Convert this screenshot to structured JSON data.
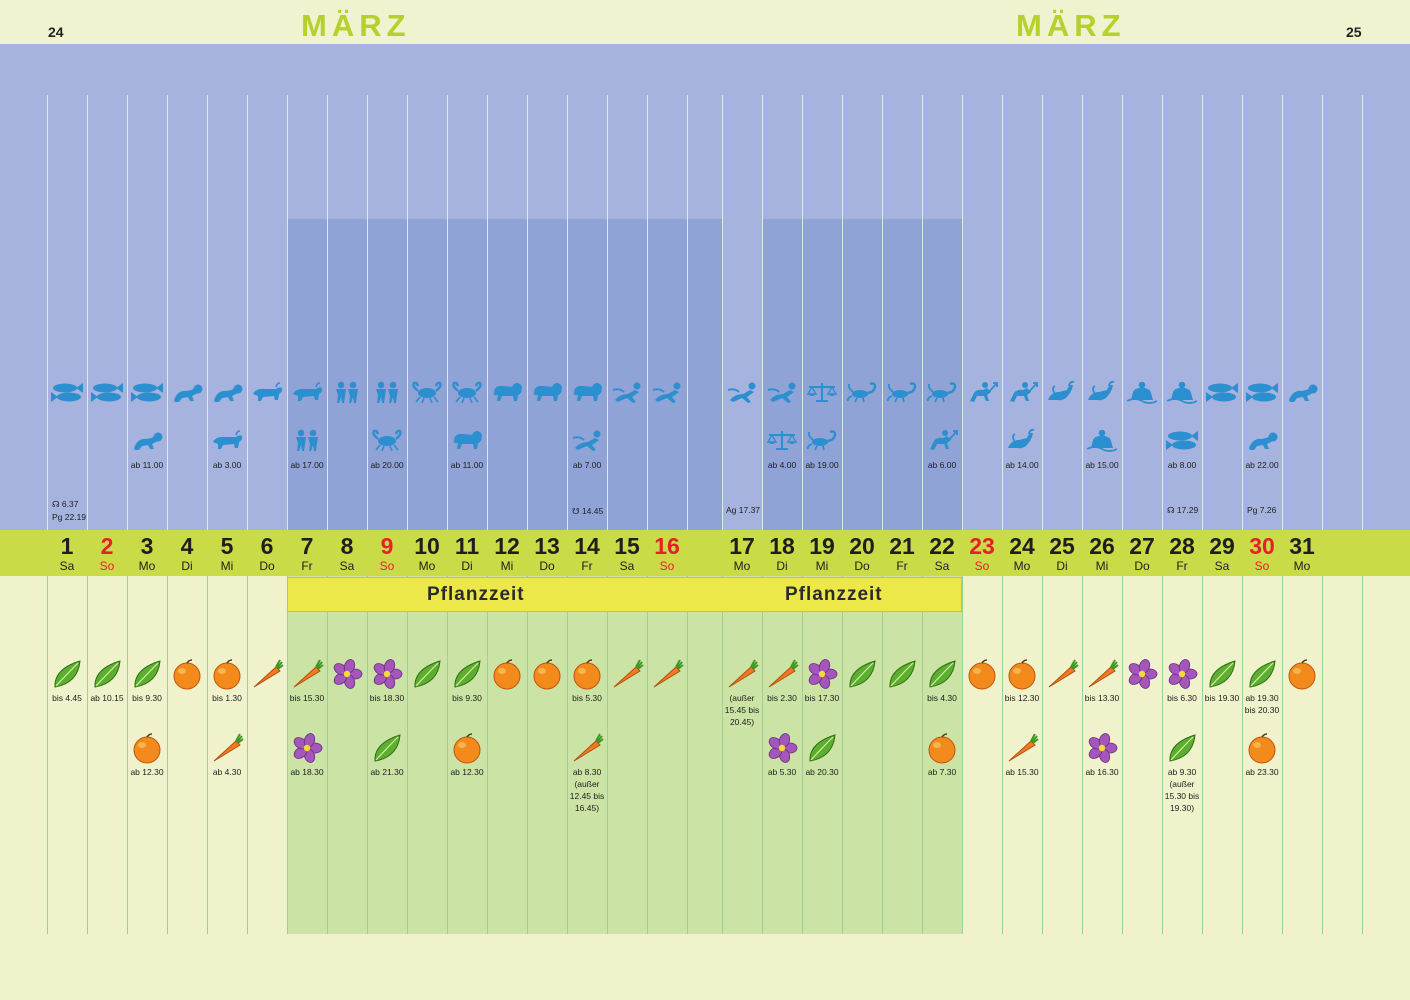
{
  "header": {
    "page_left": "24",
    "page_right": "25",
    "month_left": "MÄRZ",
    "month_right": "MÄRZ"
  },
  "planting": {
    "label_1": "Pflanzzeit",
    "label_2": "Pflanzzeit"
  },
  "days": [
    {
      "num": "1",
      "name": "Sa",
      "red": false
    },
    {
      "num": "2",
      "name": "So",
      "red": true
    },
    {
      "num": "3",
      "name": "Mo",
      "red": false
    },
    {
      "num": "4",
      "name": "Di",
      "red": false
    },
    {
      "num": "5",
      "name": "Mi",
      "red": false
    },
    {
      "num": "6",
      "name": "Do",
      "red": false
    },
    {
      "num": "7",
      "name": "Fr",
      "red": false
    },
    {
      "num": "8",
      "name": "Sa",
      "red": false
    },
    {
      "num": "9",
      "name": "So",
      "red": true
    },
    {
      "num": "10",
      "name": "Mo",
      "red": false
    },
    {
      "num": "11",
      "name": "Di",
      "red": false
    },
    {
      "num": "12",
      "name": "Mi",
      "red": false
    },
    {
      "num": "13",
      "name": "Do",
      "red": false
    },
    {
      "num": "14",
      "name": "Fr",
      "red": false
    },
    {
      "num": "15",
      "name": "Sa",
      "red": false
    },
    {
      "num": "16",
      "name": "So",
      "red": true
    },
    {
      "num": "17",
      "name": "Mo",
      "red": false
    },
    {
      "num": "18",
      "name": "Di",
      "red": false
    },
    {
      "num": "19",
      "name": "Mi",
      "red": false
    },
    {
      "num": "20",
      "name": "Do",
      "red": false
    },
    {
      "num": "21",
      "name": "Fr",
      "red": false
    },
    {
      "num": "22",
      "name": "Sa",
      "red": false
    },
    {
      "num": "23",
      "name": "So",
      "red": true
    },
    {
      "num": "24",
      "name": "Mo",
      "red": false
    },
    {
      "num": "25",
      "name": "Di",
      "red": false
    },
    {
      "num": "26",
      "name": "Mi",
      "red": false
    },
    {
      "num": "27",
      "name": "Do",
      "red": false
    },
    {
      "num": "28",
      "name": "Fr",
      "red": false
    },
    {
      "num": "29",
      "name": "Sa",
      "red": false
    },
    {
      "num": "30",
      "name": "So",
      "red": true
    },
    {
      "num": "31",
      "name": "Mo",
      "red": false
    }
  ],
  "zodiac_row1": [
    "pisces",
    "pisces",
    "pisces",
    "aries",
    "aries",
    "taurus",
    "taurus",
    "gemini",
    "gemini",
    "cancer",
    "cancer",
    "leo",
    "leo",
    "leo",
    "virgo",
    "virgo",
    "virgo",
    "virgo",
    "libra",
    "scorpio",
    "scorpio",
    "scorpio",
    "sagittarius",
    "sagittarius",
    "capricorn",
    "capricorn",
    "aquarius",
    "aquarius",
    "pisces",
    "pisces",
    "aries"
  ],
  "zodiac_row2": [
    {
      "day": 3,
      "sign": "aries",
      "label": "ab 11.00"
    },
    {
      "day": 5,
      "sign": "taurus",
      "label": "ab 3.00"
    },
    {
      "day": 7,
      "sign": "gemini",
      "label": "ab 17.00"
    },
    {
      "day": 9,
      "sign": "cancer",
      "label": "ab 20.00"
    },
    {
      "day": 11,
      "sign": "leo",
      "label": "ab 11.00"
    },
    {
      "day": 14,
      "sign": "virgo",
      "label": "ab 7.00"
    },
    {
      "day": 18,
      "sign": "libra",
      "label": "ab 4.00"
    },
    {
      "day": 19,
      "sign": "scorpio",
      "label": "ab 19.00"
    },
    {
      "day": 22,
      "sign": "sagittarius",
      "label": "ab 6.00"
    },
    {
      "day": 24,
      "sign": "capricorn",
      "label": "ab 14.00"
    },
    {
      "day": 26,
      "sign": "aquarius",
      "label": "ab 15.00"
    },
    {
      "day": 28,
      "sign": "pisces",
      "label": "ab 8.00"
    },
    {
      "day": 30,
      "sign": "aries",
      "label": "ab 22.00"
    }
  ],
  "moon_events": [
    {
      "day": 1,
      "text": "☊ 6.37"
    },
    {
      "day": 1,
      "text": "Pg 22.19"
    },
    {
      "day": 14,
      "text": "☋ 14.45"
    },
    {
      "day": 17,
      "text": "Ag 17.37"
    },
    {
      "day": 28,
      "text": "☊ 17.29"
    },
    {
      "day": 30,
      "text": "Pg 7.26"
    }
  ],
  "plants_row1": [
    {
      "day": 1,
      "type": "leaf",
      "label": "bis 4.45"
    },
    {
      "day": 2,
      "type": "leaf",
      "label": "ab 10.15"
    },
    {
      "day": 3,
      "type": "leaf",
      "label": "bis 9.30"
    },
    {
      "day": 4,
      "type": "fruit",
      "label": ""
    },
    {
      "day": 5,
      "type": "fruit",
      "label": "bis 1.30"
    },
    {
      "day": 6,
      "type": "root",
      "label": ""
    },
    {
      "day": 7,
      "type": "root",
      "label": "bis 15.30"
    },
    {
      "day": 8,
      "type": "flower",
      "label": ""
    },
    {
      "day": 9,
      "type": "flower",
      "label": "bis 18.30"
    },
    {
      "day": 10,
      "type": "leaf",
      "label": ""
    },
    {
      "day": 11,
      "type": "leaf",
      "label": "bis 9.30"
    },
    {
      "day": 12,
      "type": "fruit",
      "label": ""
    },
    {
      "day": 13,
      "type": "fruit",
      "label": ""
    },
    {
      "day": 14,
      "type": "fruit",
      "label": "bis 5.30"
    },
    {
      "day": 15,
      "type": "root",
      "label": ""
    },
    {
      "day": 16,
      "type": "root",
      "label": ""
    },
    {
      "day": 17,
      "type": "root",
      "label": "(außer 15.45 bis 20.45)"
    },
    {
      "day": 18,
      "type": "root",
      "label": "bis 2.30"
    },
    {
      "day": 19,
      "type": "flower",
      "label": "bis 17.30"
    },
    {
      "day": 20,
      "type": "leaf",
      "label": ""
    },
    {
      "day": 21,
      "type": "leaf",
      "label": ""
    },
    {
      "day": 22,
      "type": "leaf",
      "label": "bis 4.30"
    },
    {
      "day": 23,
      "type": "fruit",
      "label": ""
    },
    {
      "day": 24,
      "type": "fruit",
      "label": "bis 12.30"
    },
    {
      "day": 25,
      "type": "root",
      "label": ""
    },
    {
      "day": 26,
      "type": "root",
      "label": "bis 13.30"
    },
    {
      "day": 27,
      "type": "flower",
      "label": ""
    },
    {
      "day": 28,
      "type": "flower",
      "label": "bis 6.30"
    },
    {
      "day": 29,
      "type": "leaf",
      "label": "bis 19.30"
    },
    {
      "day": 30,
      "type": "leaf",
      "label": "ab 19.30 bis 20.30"
    },
    {
      "day": 31,
      "type": "fruit",
      "label": ""
    }
  ],
  "plants_row2": [
    {
      "day": 3,
      "type": "fruit",
      "label": "ab 12.30"
    },
    {
      "day": 5,
      "type": "root",
      "label": "ab 4.30"
    },
    {
      "day": 7,
      "type": "flower",
      "label": "ab 18.30"
    },
    {
      "day": 9,
      "type": "leaf",
      "label": "ab 21.30"
    },
    {
      "day": 11,
      "type": "fruit",
      "label": "ab 12.30"
    },
    {
      "day": 14,
      "type": "root",
      "label": "ab 8.30 (außer 12.45 bis 16.45)"
    },
    {
      "day": 18,
      "type": "flower",
      "label": "ab 5.30"
    },
    {
      "day": 19,
      "type": "leaf",
      "label": "ab 20.30"
    },
    {
      "day": 22,
      "type": "fruit",
      "label": "ab 7.30"
    },
    {
      "day": 24,
      "type": "root",
      "label": "ab 15.30"
    },
    {
      "day": 26,
      "type": "flower",
      "label": "ab 16.30"
    },
    {
      "day": 28,
      "type": "leaf",
      "label": "ab 9.30 (außer 15.30 bis 19.30)"
    },
    {
      "day": 30,
      "type": "fruit",
      "label": "ab 23.30"
    }
  ],
  "celestial": [
    {
      "name": "first-quarter-moon-icon",
      "day": 6
    },
    {
      "name": "full-moon-sun-icon",
      "day": 14
    },
    {
      "name": "last-quarter-moon-icon",
      "day": 22
    },
    {
      "name": "new-moon-icon",
      "day": 29
    }
  ],
  "colors": {
    "sky": "#a6b3de",
    "sky_dark": "#8fa3d6",
    "moon_path": "#a6c5ea",
    "zodiac": "#2b8fd0",
    "day_band": "#c9dc47",
    "pflanzzeit": "#ede84a",
    "green_block": "#cbe3a5",
    "page": "#f1f2cf",
    "sunday": "#e4202a",
    "month": "#b6d12c"
  }
}
